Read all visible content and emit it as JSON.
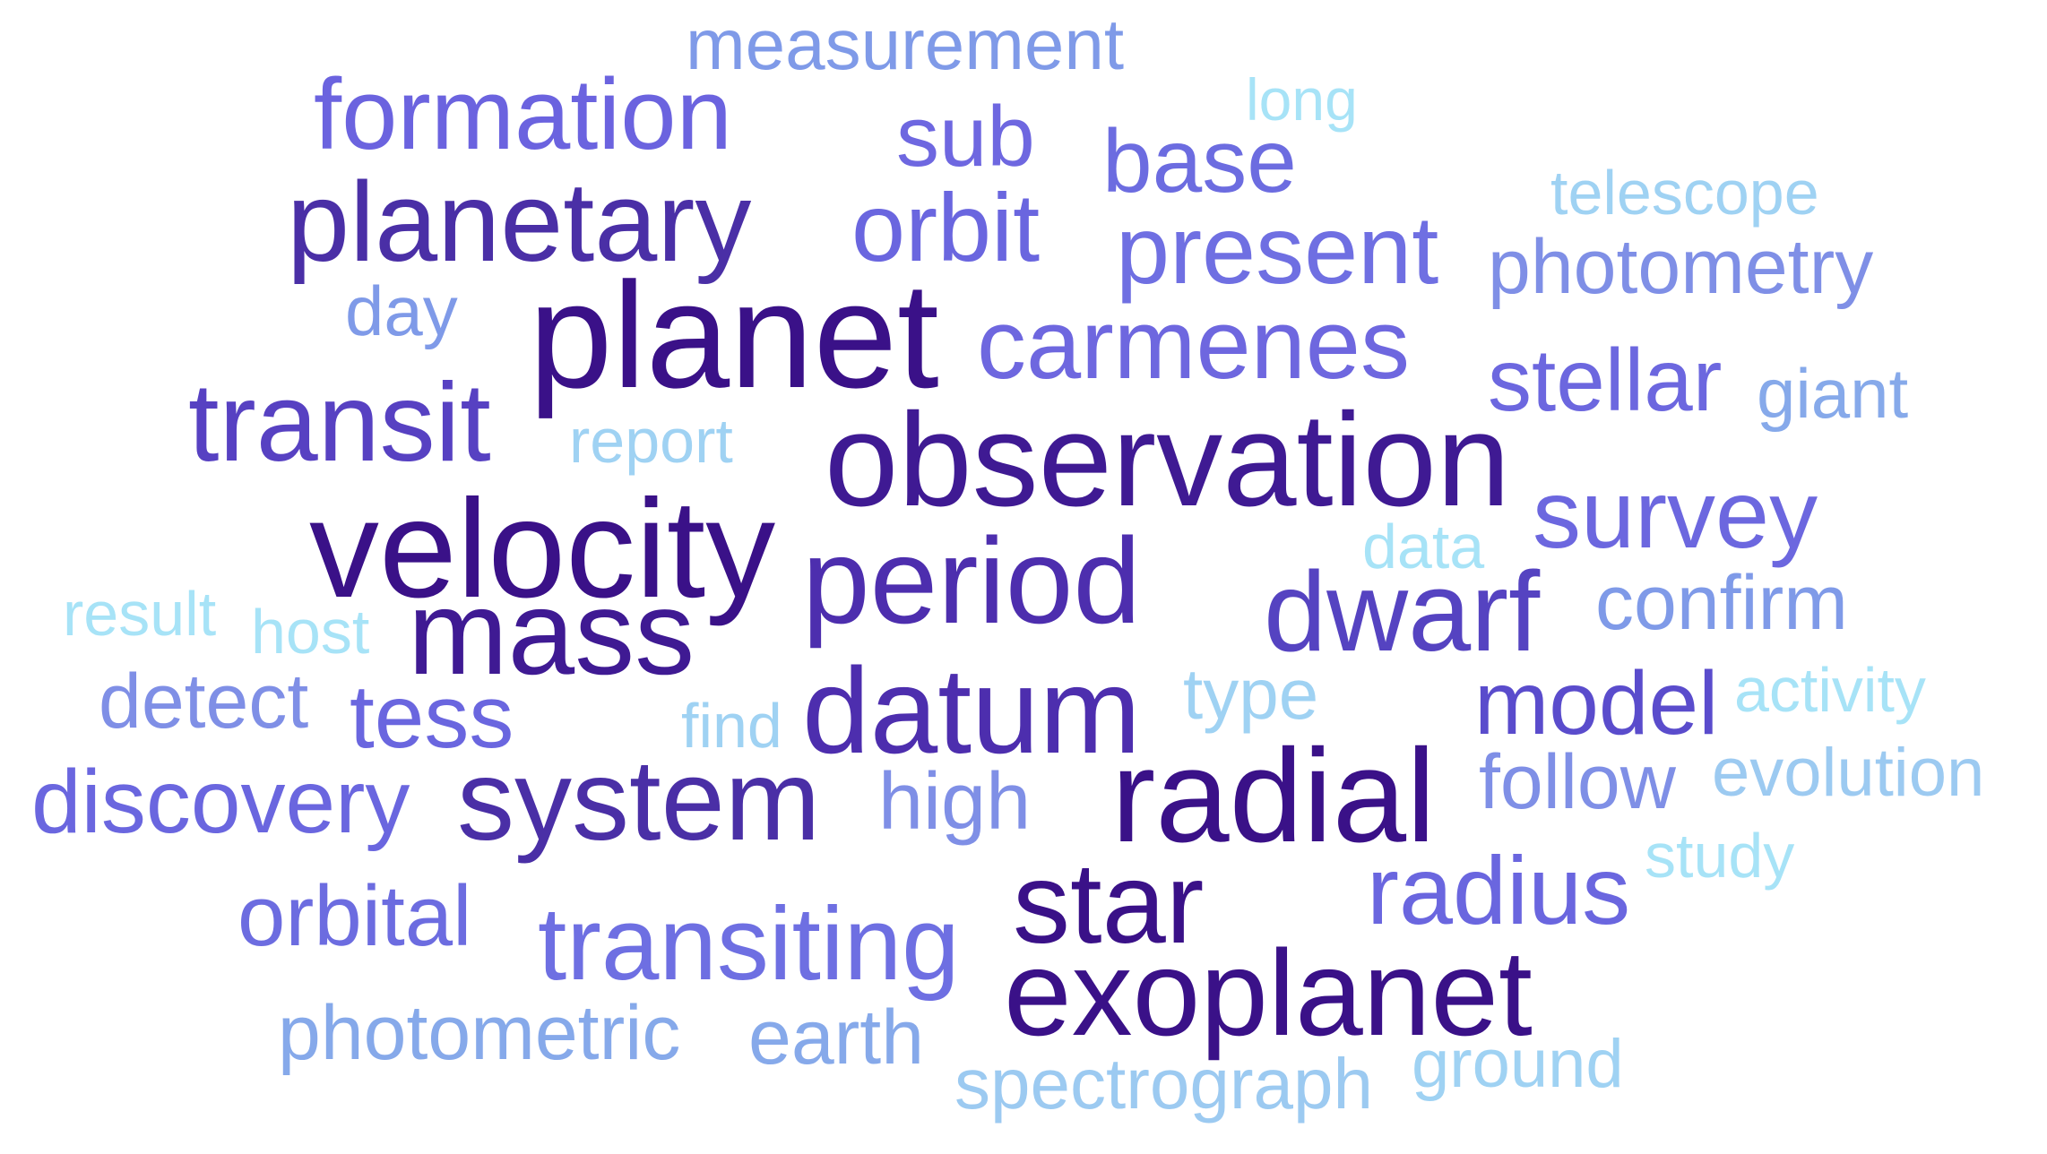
{
  "words": [
    {
      "text": "measurement",
      "color": "#7f9ae8"
    },
    {
      "text": "formation",
      "color": "#6b63df"
    },
    {
      "text": "long",
      "color": "#a7e3f7"
    },
    {
      "text": "sub",
      "color": "#6e67e0"
    },
    {
      "text": "base",
      "color": "#6c6ce0"
    },
    {
      "text": "planetary",
      "color": "#4a2fa6"
    },
    {
      "text": "orbit",
      "color": "#6a66df"
    },
    {
      "text": "telescope",
      "color": "#9fd2f3"
    },
    {
      "text": "present",
      "color": "#6f6fe2"
    },
    {
      "text": "photometry",
      "color": "#7f8fe6"
    },
    {
      "text": "day",
      "color": "#7f9ae8"
    },
    {
      "text": "planet",
      "color": "#3a1188"
    },
    {
      "text": "carmenes",
      "color": "#6e67df"
    },
    {
      "text": "stellar",
      "color": "#6c67df"
    },
    {
      "text": "giant",
      "color": "#86a9ea"
    },
    {
      "text": "transit",
      "color": "#5741c2"
    },
    {
      "text": "report",
      "color": "#9fd2f3"
    },
    {
      "text": "observation",
      "color": "#3f1a93"
    },
    {
      "text": "survey",
      "color": "#6c67df"
    },
    {
      "text": "velocity",
      "color": "#3a1188"
    },
    {
      "text": "data",
      "color": "#a7e3f7"
    },
    {
      "text": "period",
      "color": "#4d2eae"
    },
    {
      "text": "result",
      "color": "#a7e3f7"
    },
    {
      "text": "host",
      "color": "#a7e3f7"
    },
    {
      "text": "mass",
      "color": "#3f1a93"
    },
    {
      "text": "dwarf",
      "color": "#5543c1"
    },
    {
      "text": "confirm",
      "color": "#7f9ae8"
    },
    {
      "text": "detect",
      "color": "#7f8fe6"
    },
    {
      "text": "tess",
      "color": "#6a66df"
    },
    {
      "text": "find",
      "color": "#9fd2f3"
    },
    {
      "text": "datum",
      "color": "#4d2eae"
    },
    {
      "text": "type",
      "color": "#9fd2f3"
    },
    {
      "text": "model",
      "color": "#5a4ccc"
    },
    {
      "text": "activity",
      "color": "#a7e3f7"
    },
    {
      "text": "discovery",
      "color": "#6a66df"
    },
    {
      "text": "system",
      "color": "#4a2fa6"
    },
    {
      "text": "high",
      "color": "#7f8fe6"
    },
    {
      "text": "radial",
      "color": "#3a1188"
    },
    {
      "text": "follow",
      "color": "#7f8fe6"
    },
    {
      "text": "evolution",
      "color": "#9ccaf1"
    },
    {
      "text": "study",
      "color": "#a7e3f7"
    },
    {
      "text": "star",
      "color": "#3a1188"
    },
    {
      "text": "radius",
      "color": "#6a66df"
    },
    {
      "text": "orbital",
      "color": "#6c6ce0"
    },
    {
      "text": "transiting",
      "color": "#6e6fe2"
    },
    {
      "text": "exoplanet",
      "color": "#3a1188"
    },
    {
      "text": "photometric",
      "color": "#86a9ea"
    },
    {
      "text": "earth",
      "color": "#86a9ea"
    },
    {
      "text": "spectrograph",
      "color": "#9ccaf1"
    },
    {
      "text": "ground",
      "color": "#9fd2f3"
    }
  ]
}
